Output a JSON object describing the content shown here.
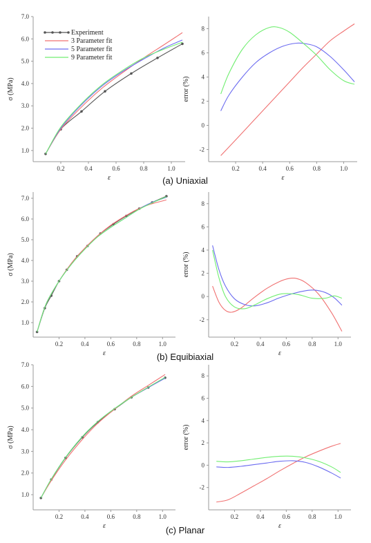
{
  "figure": {
    "captions": [
      "(a) Uniaxial",
      "(b) Equibiaxial",
      "(c) Planar"
    ]
  },
  "colors": {
    "Experiment": "#555555",
    "3 Parameter fit": "#f07070",
    "5 Parameter fit": "#6a6af0",
    "9 Parameter fit": "#70ee70"
  },
  "chart_data": [
    {
      "id": "uniaxial-stress",
      "type": "line",
      "xlabel": "ε",
      "ylabel": "σ (MPa)",
      "xlim": [
        0.0,
        1.1
      ],
      "ylim": [
        0.5,
        7.0
      ],
      "xticks": [
        0.2,
        0.4,
        0.6,
        0.8,
        1.0
      ],
      "yticks": [
        1.0,
        2.0,
        3.0,
        4.0,
        5.0,
        6.0,
        7.0
      ],
      "xtick_labels": [
        "0.2",
        "0.4",
        "0.6",
        "0.8",
        "1.0"
      ],
      "ytick_labels": [
        "1.0",
        "2.0",
        "3.0",
        "4.0",
        "5.0",
        "6.0",
        "7.0"
      ],
      "legend": {
        "position": "top-left",
        "entries": [
          "Experiment",
          "3 Parameter fit",
          "5 Parameter fit",
          "9 Parameter fit"
        ]
      },
      "series": [
        {
          "name": "Experiment",
          "marker": true,
          "x": [
            0.09,
            0.2,
            0.35,
            0.52,
            0.71,
            0.9,
            1.08
          ],
          "y": [
            0.85,
            1.95,
            2.75,
            3.65,
            4.45,
            5.15,
            5.78
          ]
        },
        {
          "name": "3 Parameter fit",
          "x": [
            0.09,
            0.2,
            0.35,
            0.5,
            0.65,
            0.8,
            0.95,
            1.08
          ],
          "y": [
            0.85,
            1.95,
            2.95,
            3.8,
            4.5,
            5.15,
            5.75,
            6.28
          ]
        },
        {
          "name": "5 Parameter fit",
          "x": [
            0.09,
            0.2,
            0.35,
            0.5,
            0.65,
            0.8,
            0.95,
            1.08
          ],
          "y": [
            0.85,
            2.0,
            3.05,
            3.9,
            4.55,
            5.1,
            5.6,
            5.95
          ]
        },
        {
          "name": "9 Parameter fit",
          "x": [
            0.09,
            0.2,
            0.35,
            0.5,
            0.65,
            0.8,
            0.95,
            1.08
          ],
          "y": [
            0.85,
            2.05,
            3.1,
            3.95,
            4.6,
            5.15,
            5.55,
            5.85
          ]
        }
      ]
    },
    {
      "id": "uniaxial-error",
      "type": "line",
      "xlabel": "ε",
      "ylabel": "error (%)",
      "xlim": [
        0.0,
        1.1
      ],
      "ylim": [
        -3.0,
        9.0
      ],
      "xticks": [
        0.2,
        0.4,
        0.6,
        0.8,
        1.0
      ],
      "yticks": [
        -2,
        0,
        2,
        4,
        6,
        8
      ],
      "xtick_labels": [
        "0.2",
        "0.4",
        "0.6",
        "0.8",
        "1.0"
      ],
      "ytick_labels": [
        "-2",
        "0",
        "2",
        "4",
        "6",
        "8"
      ],
      "series": [
        {
          "name": "3 Parameter fit",
          "x": [
            0.09,
            0.2,
            0.3,
            0.4,
            0.5,
            0.6,
            0.7,
            0.8,
            0.9,
            1.0,
            1.08
          ],
          "y": [
            -2.5,
            -1.2,
            0.0,
            1.2,
            2.4,
            3.6,
            4.8,
            5.9,
            7.0,
            7.8,
            8.4
          ]
        },
        {
          "name": "5 Parameter fit",
          "x": [
            0.09,
            0.15,
            0.25,
            0.35,
            0.45,
            0.55,
            0.65,
            0.72,
            0.8,
            0.9,
            1.0,
            1.08
          ],
          "y": [
            1.2,
            2.5,
            4.0,
            5.2,
            6.0,
            6.55,
            6.8,
            6.75,
            6.5,
            5.7,
            4.6,
            3.6
          ]
        },
        {
          "name": "9 Parameter fit",
          "x": [
            0.09,
            0.15,
            0.25,
            0.35,
            0.45,
            0.52,
            0.6,
            0.7,
            0.8,
            0.9,
            1.0,
            1.08
          ],
          "y": [
            2.6,
            4.3,
            6.3,
            7.5,
            8.1,
            8.1,
            7.7,
            6.8,
            5.8,
            4.6,
            3.7,
            3.4
          ]
        }
      ]
    },
    {
      "id": "equibiaxial-stress",
      "type": "line",
      "xlabel": "ε",
      "ylabel": "σ (MPa)",
      "xlim": [
        0.0,
        1.1
      ],
      "ylim": [
        0.3,
        7.3
      ],
      "xticks": [
        0.2,
        0.4,
        0.6,
        0.8,
        1.0
      ],
      "yticks": [
        1.0,
        2.0,
        3.0,
        4.0,
        5.0,
        6.0,
        7.0
      ],
      "xtick_labels": [
        "0.2",
        "0.4",
        "0.6",
        "0.8",
        "1.0"
      ],
      "ytick_labels": [
        "1.0",
        "2.0",
        "3.0",
        "4.0",
        "5.0",
        "6.0",
        "7.0"
      ],
      "series": [
        {
          "name": "Experiment",
          "marker": true,
          "x": [
            0.03,
            0.09,
            0.14,
            0.2,
            0.26,
            0.34,
            0.42,
            0.52,
            0.62,
            0.72,
            0.82,
            0.92,
            1.03
          ],
          "y": [
            0.55,
            1.7,
            2.3,
            3.0,
            3.55,
            4.2,
            4.7,
            5.3,
            5.75,
            6.15,
            6.5,
            6.8,
            7.1
          ]
        },
        {
          "name": "3 Parameter fit",
          "x": [
            0.03,
            0.1,
            0.2,
            0.3,
            0.4,
            0.5,
            0.6,
            0.7,
            0.8,
            0.9,
            1.03
          ],
          "y": [
            0.55,
            1.9,
            3.0,
            3.9,
            4.6,
            5.2,
            5.7,
            6.1,
            6.45,
            6.7,
            6.92
          ]
        },
        {
          "name": "5 Parameter fit",
          "x": [
            0.03,
            0.1,
            0.2,
            0.3,
            0.4,
            0.5,
            0.6,
            0.7,
            0.8,
            0.9,
            1.03
          ],
          "y": [
            0.55,
            1.9,
            3.0,
            3.85,
            4.55,
            5.15,
            5.6,
            6.0,
            6.4,
            6.75,
            7.05
          ]
        },
        {
          "name": "9 Parameter fit",
          "x": [
            0.03,
            0.1,
            0.2,
            0.3,
            0.4,
            0.5,
            0.6,
            0.7,
            0.8,
            0.9,
            1.03
          ],
          "y": [
            0.55,
            1.9,
            3.0,
            3.85,
            4.55,
            5.15,
            5.6,
            6.0,
            6.4,
            6.72,
            7.08
          ]
        }
      ]
    },
    {
      "id": "equibiaxial-error",
      "type": "line",
      "xlabel": "ε",
      "ylabel": "error (%)",
      "xlim": [
        0.0,
        1.1
      ],
      "ylim": [
        -3.5,
        9.0
      ],
      "xticks": [
        0.2,
        0.4,
        0.6,
        0.8,
        1.0
      ],
      "yticks": [
        -2,
        0,
        2,
        4,
        6,
        8
      ],
      "xtick_labels": [
        "0.2",
        "0.4",
        "0.6",
        "0.8",
        "1.0"
      ],
      "ytick_labels": [
        "-2",
        "0",
        "2",
        "4",
        "6",
        "8"
      ],
      "series": [
        {
          "name": "3 Parameter fit",
          "x": [
            0.03,
            0.08,
            0.13,
            0.18,
            0.25,
            0.35,
            0.45,
            0.55,
            0.62,
            0.68,
            0.75,
            0.85,
            0.95,
            1.03
          ],
          "y": [
            0.9,
            -0.5,
            -1.2,
            -1.35,
            -1.0,
            -0.1,
            0.7,
            1.3,
            1.55,
            1.55,
            1.2,
            0.2,
            -1.4,
            -3.0
          ]
        },
        {
          "name": "5 Parameter fit",
          "x": [
            0.03,
            0.08,
            0.13,
            0.2,
            0.28,
            0.36,
            0.45,
            0.55,
            0.65,
            0.75,
            0.82,
            0.9,
            0.97,
            1.03
          ],
          "y": [
            4.4,
            2.3,
            0.9,
            -0.2,
            -0.7,
            -0.8,
            -0.55,
            -0.1,
            0.25,
            0.5,
            0.55,
            0.35,
            -0.1,
            -0.75
          ]
        },
        {
          "name": "9 Parameter fit",
          "x": [
            0.03,
            0.08,
            0.13,
            0.2,
            0.28,
            0.36,
            0.45,
            0.55,
            0.62,
            0.7,
            0.8,
            0.9,
            0.97,
            1.03
          ],
          "y": [
            4.0,
            1.6,
            0.0,
            -0.9,
            -1.05,
            -0.7,
            -0.2,
            0.2,
            0.25,
            0.15,
            -0.15,
            -0.15,
            0.05,
            -0.15
          ]
        }
      ]
    },
    {
      "id": "planar-stress",
      "type": "line",
      "xlabel": "ε",
      "ylabel": "σ (MPa)",
      "xlim": [
        0.0,
        1.1
      ],
      "ylim": [
        0.3,
        7.0
      ],
      "xticks": [
        0.2,
        0.4,
        0.6,
        0.8,
        1.0
      ],
      "yticks": [
        1.0,
        2.0,
        3.0,
        4.0,
        5.0,
        6.0,
        7.0
      ],
      "xtick_labels": [
        "0.2",
        "0.4",
        "0.6",
        "0.8",
        "1.0"
      ],
      "ytick_labels": [
        "1.0",
        "2.0",
        "3.0",
        "4.0",
        "5.0",
        "6.0",
        "7.0"
      ],
      "series": [
        {
          "name": "Experiment",
          "marker": true,
          "x": [
            0.06,
            0.14,
            0.25,
            0.38,
            0.5,
            0.63,
            0.76,
            0.89,
            1.02
          ],
          "y": [
            0.85,
            1.7,
            2.7,
            3.65,
            4.35,
            4.95,
            5.5,
            5.95,
            6.4
          ]
        },
        {
          "name": "3 Parameter fit",
          "x": [
            0.06,
            0.14,
            0.25,
            0.38,
            0.5,
            0.63,
            0.76,
            0.89,
            1.02
          ],
          "y": [
            0.85,
            1.65,
            2.6,
            3.55,
            4.3,
            4.95,
            5.55,
            6.05,
            6.55
          ]
        },
        {
          "name": "5 Parameter fit",
          "x": [
            0.06,
            0.14,
            0.25,
            0.38,
            0.5,
            0.63,
            0.76,
            0.89,
            1.02
          ],
          "y": [
            0.85,
            1.72,
            2.72,
            3.68,
            4.38,
            4.98,
            5.5,
            5.95,
            6.38
          ]
        },
        {
          "name": "9 Parameter fit",
          "x": [
            0.06,
            0.14,
            0.25,
            0.38,
            0.5,
            0.63,
            0.76,
            0.89,
            1.02
          ],
          "y": [
            0.85,
            1.72,
            2.72,
            3.68,
            4.38,
            4.98,
            5.5,
            5.97,
            6.42
          ]
        }
      ]
    },
    {
      "id": "planar-error",
      "type": "line",
      "xlabel": "ε",
      "ylabel": "error (%)",
      "xlim": [
        0.0,
        1.1
      ],
      "ylim": [
        -4.0,
        9.0
      ],
      "xticks": [
        0.2,
        0.4,
        0.6,
        0.8,
        1.0
      ],
      "yticks": [
        -2,
        0,
        2,
        4,
        6,
        8
      ],
      "xtick_labels": [
        "0.2",
        "0.4",
        "0.6",
        "0.8",
        "1.0"
      ],
      "ytick_labels": [
        "-2",
        "0",
        "2",
        "4",
        "6",
        "8"
      ],
      "series": [
        {
          "name": "3 Parameter fit",
          "x": [
            0.06,
            0.15,
            0.25,
            0.35,
            0.45,
            0.55,
            0.65,
            0.75,
            0.85,
            0.95,
            1.02
          ],
          "y": [
            -3.3,
            -3.1,
            -2.5,
            -1.85,
            -1.2,
            -0.5,
            0.15,
            0.75,
            1.25,
            1.7,
            1.95
          ]
        },
        {
          "name": "5 Parameter fit",
          "x": [
            0.06,
            0.15,
            0.25,
            0.35,
            0.45,
            0.55,
            0.65,
            0.75,
            0.85,
            0.95,
            1.02
          ],
          "y": [
            -0.15,
            -0.2,
            -0.1,
            0.05,
            0.2,
            0.35,
            0.4,
            0.25,
            -0.15,
            -0.7,
            -1.15
          ]
        },
        {
          "name": "9 Parameter fit",
          "x": [
            0.06,
            0.15,
            0.25,
            0.35,
            0.45,
            0.55,
            0.65,
            0.75,
            0.85,
            0.95,
            1.02
          ],
          "y": [
            0.35,
            0.3,
            0.4,
            0.55,
            0.7,
            0.8,
            0.8,
            0.65,
            0.35,
            -0.15,
            -0.65
          ]
        }
      ]
    }
  ]
}
